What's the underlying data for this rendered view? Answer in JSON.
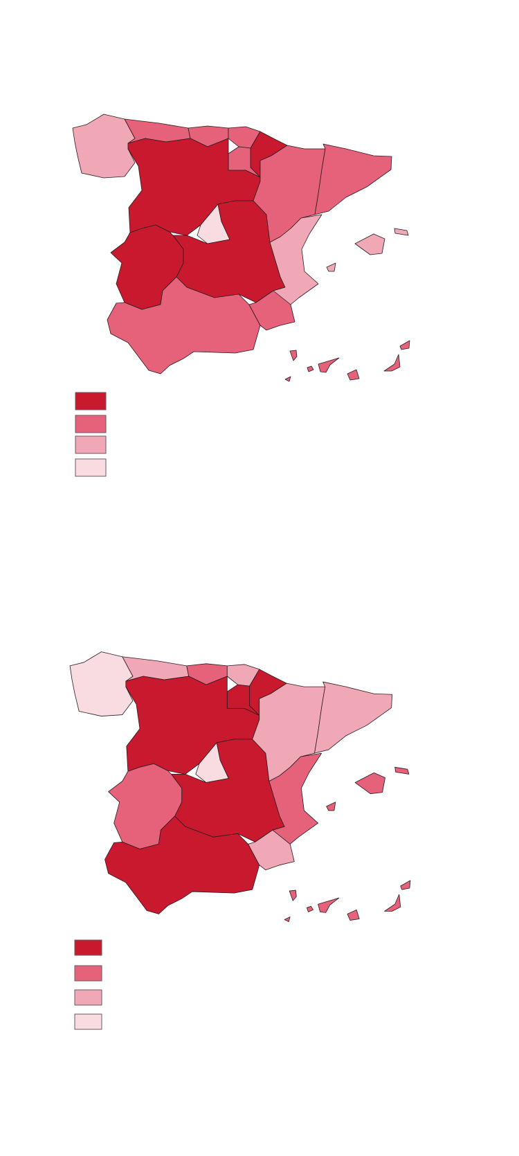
{
  "palette": [
    "#c8192f",
    "#e5627a",
    "#f0a8b6",
    "#f9dce2"
  ],
  "maps": [
    {
      "regions": {
        "galicia": 2,
        "asturias": 1,
        "cantabria": 1,
        "pais_vasco": 1,
        "navarra": 0,
        "la_rioja": 1,
        "castilla_leon": 0,
        "madrid": 3,
        "castilla_la_mancha": 0,
        "extremadura": 0,
        "andalucia": 1,
        "murcia": 1,
        "valencia": 2,
        "aragon": 1,
        "cataluna": 1,
        "baleares": 2,
        "canarias": 1
      },
      "legend_levels": [
        0,
        1,
        2,
        3
      ]
    },
    {
      "regions": {
        "galicia": 3,
        "asturias": 2,
        "cantabria": 1,
        "pais_vasco": 2,
        "navarra": 0,
        "la_rioja": 0,
        "castilla_leon": 0,
        "madrid": 3,
        "castilla_la_mancha": 0,
        "extremadura": 1,
        "andalucia": 0,
        "murcia": 2,
        "valencia": 1,
        "aragon": 2,
        "cataluna": 2,
        "baleares": 1,
        "canarias": 1
      },
      "legend_levels": [
        0,
        1,
        2,
        3
      ]
    }
  ]
}
